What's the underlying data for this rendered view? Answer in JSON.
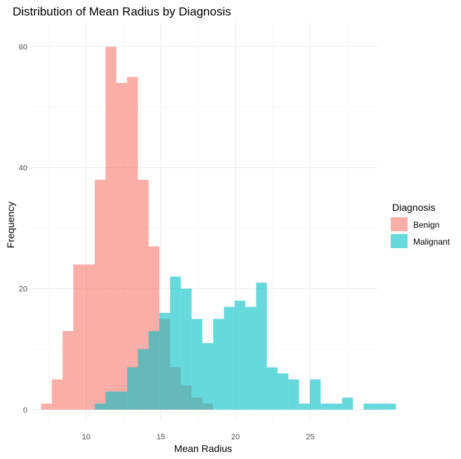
{
  "chart_data": {
    "type": "histogram",
    "title": "Distribution of Mean Radius by Diagnosis",
    "xlabel": "Mean Radius",
    "ylabel": "Frequency",
    "xlim": [
      6.3,
      29.5
    ],
    "ylim": [
      -2,
      64
    ],
    "x_ticks": [
      10,
      15,
      20,
      25
    ],
    "y_ticks": [
      0,
      20,
      40,
      60
    ],
    "grid": true,
    "bin_width": 0.72,
    "bin_start": 6.98,
    "legend": {
      "title": "Diagnosis",
      "placement": "right",
      "entries": [
        "Benign",
        "Malignant"
      ]
    },
    "series": [
      {
        "name": "Benign",
        "color": "#F8766D",
        "opacity": 0.6,
        "counts": [
          1,
          5,
          13,
          24,
          24,
          38,
          60,
          54,
          55,
          38,
          27,
          15,
          7,
          4,
          2,
          1
        ]
      },
      {
        "name": "Malignant",
        "color": "#00BFC4",
        "opacity": 0.6,
        "counts": [
          0,
          0,
          0,
          0,
          0,
          1,
          3,
          3,
          7,
          10,
          13,
          16,
          22,
          20,
          15,
          11,
          15,
          17,
          18,
          17,
          21,
          7,
          6,
          5,
          1,
          5,
          1,
          1,
          2,
          0,
          1,
          1,
          1
        ]
      }
    ]
  }
}
